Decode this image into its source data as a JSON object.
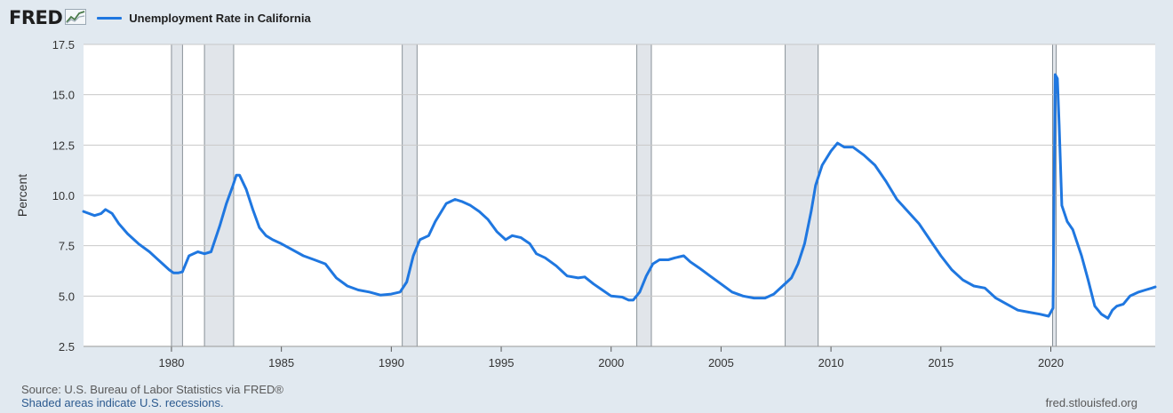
{
  "header": {
    "logo_text": "FRED",
    "logo_icon": "chart-line-icon",
    "series_label": "Unemployment Rate in California"
  },
  "colors": {
    "background": "#e1e9f0",
    "plot_bg": "#ffffff",
    "series": "#1f77e0",
    "recession_shade": "#e1e5ea",
    "grid": "#c8c8c8"
  },
  "footer": {
    "source": "Source: U.S. Bureau of Labor Statistics via FRED®",
    "shade_note": "Shaded areas indicate U.S. recessions.",
    "site": "fred.stlouisfed.org"
  },
  "chart_data": {
    "type": "line",
    "ylabel": "Percent",
    "xlim": [
      1976.0,
      2024.75
    ],
    "ylim": [
      2.5,
      17.5
    ],
    "yticks": [
      "2.5",
      "5.0",
      "7.5",
      "10.0",
      "12.5",
      "15.0",
      "17.5"
    ],
    "xticks": [
      "1980",
      "1985",
      "1990",
      "1995",
      "2000",
      "2005",
      "2010",
      "2015",
      "2020"
    ],
    "grid": "horizontal",
    "recessions": [
      [
        1980.0,
        1980.5
      ],
      [
        1981.5,
        1982.83
      ],
      [
        1990.5,
        1991.17
      ],
      [
        2001.17,
        2001.83
      ],
      [
        2007.92,
        2009.42
      ],
      [
        2020.08,
        2020.25
      ]
    ],
    "series": [
      {
        "name": "Unemployment Rate in California",
        "x": [
          1976.0,
          1976.5,
          1976.8,
          1977.0,
          1977.3,
          1977.6,
          1978.0,
          1978.5,
          1979.0,
          1979.3,
          1979.6,
          1979.9,
          1980.1,
          1980.3,
          1980.5,
          1980.8,
          1981.2,
          1981.5,
          1981.8,
          1982.2,
          1982.5,
          1982.8,
          1982.95,
          1983.1,
          1983.4,
          1983.7,
          1984.0,
          1984.3,
          1984.6,
          1985.0,
          1985.5,
          1986.0,
          1986.5,
          1987.0,
          1987.5,
          1988.0,
          1988.5,
          1989.0,
          1989.5,
          1990.0,
          1990.4,
          1990.7,
          1991.0,
          1991.3,
          1991.7,
          1992.0,
          1992.5,
          1992.9,
          1993.2,
          1993.6,
          1994.0,
          1994.4,
          1994.8,
          1995.2,
          1995.5,
          1995.9,
          1996.3,
          1996.6,
          1997.0,
          1997.5,
          1998.0,
          1998.5,
          1998.8,
          1999.2,
          1999.6,
          2000.0,
          2000.5,
          2000.8,
          2001.0,
          2001.3,
          2001.6,
          2001.9,
          2002.2,
          2002.6,
          2002.9,
          2003.3,
          2003.6,
          2004.0,
          2004.5,
          2005.0,
          2005.5,
          2006.0,
          2006.5,
          2007.0,
          2007.4,
          2007.8,
          2008.2,
          2008.5,
          2008.8,
          2009.1,
          2009.3,
          2009.6,
          2010.0,
          2010.3,
          2010.6,
          2011.0,
          2011.5,
          2012.0,
          2012.5,
          2013.0,
          2013.5,
          2014.0,
          2014.5,
          2015.0,
          2015.5,
          2016.0,
          2016.5,
          2017.0,
          2017.5,
          2018.0,
          2018.5,
          2019.0,
          2019.5,
          2019.9,
          2020.1,
          2020.2,
          2020.3,
          2020.38,
          2020.5,
          2020.75,
          2021.0,
          2021.4,
          2021.7,
          2022.0,
          2022.3,
          2022.6,
          2022.8,
          2023.0,
          2023.3,
          2023.6,
          2024.0,
          2024.3,
          2024.6,
          2024.75
        ],
        "values": [
          9.2,
          9.0,
          9.1,
          9.3,
          9.1,
          8.6,
          8.1,
          7.6,
          7.2,
          6.9,
          6.6,
          6.3,
          6.15,
          6.15,
          6.2,
          7.0,
          7.2,
          7.1,
          7.2,
          8.5,
          9.6,
          10.5,
          11.0,
          11.0,
          10.3,
          9.3,
          8.4,
          8.0,
          7.8,
          7.6,
          7.3,
          7.0,
          6.8,
          6.6,
          5.9,
          5.5,
          5.3,
          5.2,
          5.05,
          5.1,
          5.2,
          5.7,
          7.0,
          7.8,
          8.0,
          8.7,
          9.6,
          9.8,
          9.7,
          9.5,
          9.2,
          8.8,
          8.2,
          7.8,
          8.0,
          7.9,
          7.6,
          7.1,
          6.9,
          6.5,
          6.0,
          5.9,
          5.95,
          5.6,
          5.3,
          5.0,
          4.95,
          4.8,
          4.8,
          5.2,
          6.0,
          6.6,
          6.8,
          6.8,
          6.9,
          7.0,
          6.7,
          6.4,
          6.0,
          5.6,
          5.2,
          5.0,
          4.9,
          4.9,
          5.1,
          5.5,
          5.9,
          6.6,
          7.6,
          9.2,
          10.5,
          11.5,
          12.2,
          12.6,
          12.4,
          12.4,
          12.0,
          11.5,
          10.7,
          9.8,
          9.2,
          8.6,
          7.8,
          7.0,
          6.3,
          5.8,
          5.5,
          5.4,
          4.9,
          4.6,
          4.3,
          4.2,
          4.1,
          4.0,
          4.4,
          16.0,
          15.8,
          13.5,
          9.5,
          8.7,
          8.3,
          7.0,
          5.8,
          4.5,
          4.1,
          3.9,
          4.3,
          4.5,
          4.6,
          5.0,
          5.2,
          5.3,
          5.4,
          5.45
        ]
      }
    ]
  }
}
